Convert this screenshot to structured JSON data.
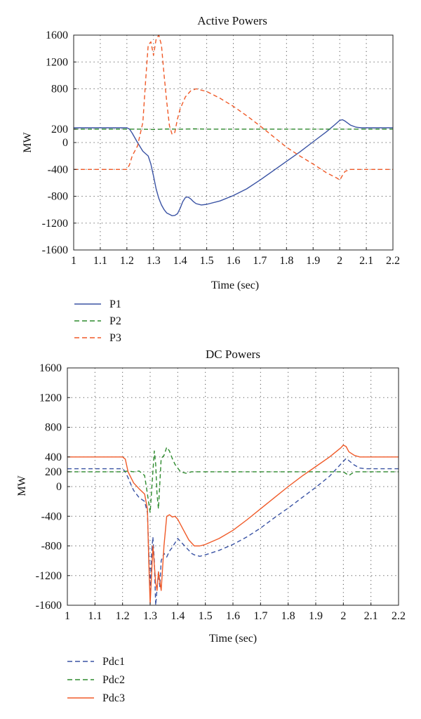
{
  "chart_data": [
    {
      "type": "line",
      "title": "Active Powers",
      "xlabel": "Time (sec)",
      "ylabel": "MW",
      "xlim": [
        1,
        2.2
      ],
      "ylim": [
        -1600,
        1600
      ],
      "xticks": [
        "1",
        "1.1",
        "1.2",
        "1.3",
        "1.4",
        "1.5",
        "1.6",
        "1.7",
        "1.8",
        "1.9",
        "2",
        "2.1",
        "2.2"
      ],
      "yticks": [
        "1600",
        "1200",
        "800",
        "200",
        "0",
        "-400",
        "-800",
        "-1200",
        "-1600"
      ],
      "grid": true,
      "legend_position": "below",
      "series": [
        {
          "name": "P1",
          "color": "#3a53a4",
          "style": "solid",
          "x": [
            1,
            1.2,
            1.21,
            1.22,
            1.24,
            1.26,
            1.28,
            1.29,
            1.3,
            1.31,
            1.32,
            1.33,
            1.34,
            1.35,
            1.36,
            1.37,
            1.38,
            1.39,
            1.4,
            1.41,
            1.42,
            1.43,
            1.44,
            1.45,
            1.46,
            1.48,
            1.5,
            1.55,
            1.6,
            1.65,
            1.7,
            1.75,
            1.8,
            1.85,
            1.9,
            1.95,
            1.98,
            2,
            2.01,
            2.02,
            2.04,
            2.06,
            2.08,
            2.2
          ],
          "y": [
            220,
            220,
            200,
            140,
            0,
            -130,
            -200,
            -320,
            -500,
            -690,
            -830,
            -930,
            -1000,
            -1050,
            -1070,
            -1090,
            -1085,
            -1060,
            -980,
            -880,
            -820,
            -810,
            -840,
            -880,
            -910,
            -930,
            -920,
            -870,
            -790,
            -690,
            -560,
            -420,
            -280,
            -140,
            10,
            160,
            260,
            330,
            340,
            320,
            260,
            230,
            220,
            220
          ]
        },
        {
          "name": "P2",
          "color": "#2e8b2e",
          "style": "dashed",
          "x": [
            1,
            1.2,
            1.25,
            1.3,
            1.35,
            1.4,
            1.45,
            1.5,
            1.6,
            1.8,
            2,
            2.2
          ],
          "y": [
            200,
            200,
            200,
            195,
            202,
            198,
            204,
            200,
            200,
            200,
            200,
            200
          ]
        },
        {
          "name": "P3",
          "color": "#f05a28",
          "style": "dashed",
          "x": [
            1,
            1.2,
            1.21,
            1.22,
            1.24,
            1.26,
            1.27,
            1.28,
            1.29,
            1.3,
            1.31,
            1.32,
            1.33,
            1.34,
            1.35,
            1.36,
            1.37,
            1.38,
            1.39,
            1.4,
            1.42,
            1.44,
            1.46,
            1.5,
            1.55,
            1.6,
            1.65,
            1.7,
            1.75,
            1.8,
            1.85,
            1.9,
            1.95,
            1.99,
            2,
            2.01,
            2.02,
            2.04,
            2.06,
            2.2
          ],
          "y": [
            -400,
            -400,
            -330,
            -200,
            -50,
            300,
            900,
            1450,
            1500,
            1300,
            1540,
            1600,
            1450,
            1000,
            600,
            250,
            120,
            150,
            350,
            500,
            680,
            770,
            800,
            760,
            660,
            540,
            400,
            250,
            90,
            -70,
            -200,
            -320,
            -450,
            -530,
            -560,
            -490,
            -430,
            -400,
            -400,
            -400
          ]
        }
      ]
    },
    {
      "type": "line",
      "title": "DC Powers",
      "xlabel": "Time (sec)",
      "ylabel": "MW",
      "xlim": [
        1,
        2.2
      ],
      "ylim": [
        -1600,
        1600
      ],
      "xticks": [
        "1",
        "1.1",
        "1.2",
        "1.3",
        "1.4",
        "1.5",
        "1.6",
        "1.7",
        "1.8",
        "1.9",
        "2",
        "2.1",
        "2.2"
      ],
      "yticks": [
        "1600",
        "1200",
        "800",
        "400",
        "200",
        "0",
        "-400",
        "-800",
        "-1200",
        "-1600"
      ],
      "grid": true,
      "legend_position": "below",
      "series": [
        {
          "name": "Pdc1",
          "color": "#3a53a4",
          "style": "dashed",
          "x": [
            1,
            1.2,
            1.21,
            1.22,
            1.23,
            1.24,
            1.26,
            1.28,
            1.29,
            1.3,
            1.305,
            1.31,
            1.315,
            1.32,
            1.33,
            1.335,
            1.34,
            1.35,
            1.36,
            1.37,
            1.38,
            1.39,
            1.4,
            1.41,
            1.42,
            1.43,
            1.44,
            1.45,
            1.46,
            1.48,
            1.5,
            1.55,
            1.6,
            1.65,
            1.7,
            1.75,
            1.8,
            1.85,
            1.9,
            1.95,
            1.98,
            2,
            2.01,
            2.02,
            2.04,
            2.06,
            2.08,
            2.2
          ],
          "y": [
            240,
            240,
            200,
            120,
            30,
            -50,
            -150,
            -200,
            -350,
            -1400,
            -900,
            -680,
            -1000,
            -1600,
            -1150,
            -1350,
            -1000,
            -900,
            -950,
            -870,
            -820,
            -760,
            -700,
            -740,
            -780,
            -820,
            -860,
            -900,
            -920,
            -940,
            -920,
            -860,
            -780,
            -680,
            -560,
            -420,
            -290,
            -150,
            -10,
            140,
            260,
            340,
            380,
            350,
            290,
            250,
            240,
            240
          ]
        },
        {
          "name": "Pdc2",
          "color": "#2e8b2e",
          "style": "dashed",
          "x": [
            1,
            1.2,
            1.22,
            1.24,
            1.26,
            1.28,
            1.29,
            1.3,
            1.31,
            1.315,
            1.32,
            1.325,
            1.33,
            1.34,
            1.35,
            1.36,
            1.37,
            1.38,
            1.39,
            1.4,
            1.41,
            1.43,
            1.45,
            1.5,
            1.6,
            1.8,
            2,
            2.02,
            2.04,
            2.2
          ],
          "y": [
            200,
            200,
            210,
            200,
            210,
            150,
            -100,
            -350,
            200,
            480,
            300,
            -100,
            -300,
            380,
            420,
            530,
            480,
            380,
            300,
            250,
            200,
            180,
            200,
            200,
            200,
            200,
            200,
            150,
            200,
            200
          ]
        },
        {
          "name": "Pdc3",
          "color": "#f05a28",
          "style": "solid",
          "x": [
            1,
            1.2,
            1.21,
            1.22,
            1.24,
            1.26,
            1.28,
            1.29,
            1.295,
            1.3,
            1.305,
            1.31,
            1.32,
            1.325,
            1.33,
            1.34,
            1.35,
            1.36,
            1.37,
            1.38,
            1.39,
            1.4,
            1.42,
            1.44,
            1.46,
            1.48,
            1.5,
            1.55,
            1.6,
            1.65,
            1.7,
            1.75,
            1.8,
            1.85,
            1.9,
            1.95,
            1.99,
            2,
            2.01,
            2.02,
            2.04,
            2.06,
            2.2
          ],
          "y": [
            400,
            400,
            370,
            200,
            50,
            -30,
            -100,
            -300,
            -1000,
            -1580,
            -1200,
            -800,
            -1300,
            -1400,
            -1150,
            -1400,
            -800,
            -400,
            -380,
            -410,
            -400,
            -440,
            -580,
            -720,
            -800,
            -800,
            -780,
            -700,
            -590,
            -450,
            -300,
            -150,
            0,
            140,
            270,
            400,
            520,
            560,
            540,
            470,
            420,
            400,
            400
          ]
        }
      ]
    }
  ]
}
